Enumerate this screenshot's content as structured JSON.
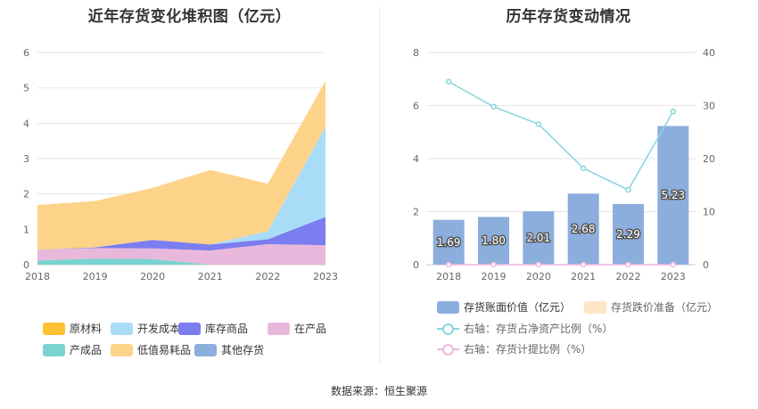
{
  "left_chart": {
    "title": "近年存货变化堆积图（亿元）",
    "legend": [
      {
        "name": "原材料",
        "color": "#fdc232"
      },
      {
        "name": "开发成本",
        "color": "#a9ddf7"
      },
      {
        "name": "库存商品",
        "color": "#7b7df0"
      },
      {
        "name": "在产品",
        "color": "#e8b8dc"
      },
      {
        "name": "产成品",
        "color": "#79d3cf"
      },
      {
        "name": "低值易耗品",
        "color": "#fdd38a"
      },
      {
        "name": "其他存货",
        "color": "#8caedd"
      }
    ]
  },
  "right_chart": {
    "title": "历年存货变动情况",
    "legend": {
      "bar1": "存货账面价值（亿元）",
      "bar2": "存货跌价准备（亿元）",
      "line1": "右轴：存货占净资产比例（%）",
      "line2": "右轴：存货计提比例（%）"
    },
    "colors": {
      "bar1": "#8caedd",
      "bar2": "#fde6c4",
      "line1": "#86d6dd",
      "line2": "#f1b6de"
    }
  },
  "source": "数据来源：恒生聚源",
  "chart_data": [
    {
      "type": "area",
      "stacked": true,
      "x": [
        "2018",
        "2019",
        "2020",
        "2021",
        "2022",
        "2023"
      ],
      "ylim": [
        0,
        6
      ],
      "yticks": [
        0,
        1,
        2,
        3,
        4,
        5,
        6
      ],
      "grid": true,
      "legend_position": "bottom",
      "series": [
        {
          "name": "产成品",
          "color": "#79d3cf",
          "values": [
            0.12,
            0.17,
            0.16,
            0.0,
            0.0,
            0.0
          ]
        },
        {
          "name": "在产品",
          "color": "#e8b8dc",
          "values": [
            0.3,
            0.3,
            0.3,
            0.4,
            0.58,
            0.55
          ]
        },
        {
          "name": "库存商品",
          "color": "#7b7df0",
          "values": [
            0.0,
            0.02,
            0.24,
            0.17,
            0.14,
            0.8
          ]
        },
        {
          "name": "开发成本",
          "color": "#a9ddf7",
          "values": [
            0.0,
            0.0,
            0.0,
            0.0,
            0.23,
            2.55
          ]
        },
        {
          "name": "原材料",
          "color": "#fdc232",
          "values": [
            0.0,
            0.0,
            0.0,
            0.0,
            0.0,
            0.0
          ]
        },
        {
          "name": "低值易耗品",
          "color": "#fdd38a",
          "values": [
            1.27,
            1.31,
            1.47,
            2.11,
            1.34,
            1.3
          ]
        },
        {
          "name": "其他存货",
          "color": "#8caedd",
          "values": [
            0.0,
            0.0,
            0.0,
            0.0,
            0.0,
            0.0
          ]
        }
      ]
    },
    {
      "type": "bar",
      "categories": [
        "2018",
        "2019",
        "2020",
        "2021",
        "2022",
        "2023"
      ],
      "ylim": [
        0,
        8
      ],
      "yticks": [
        0,
        2,
        4,
        6,
        8
      ],
      "y2lim": [
        0,
        40
      ],
      "y2ticks": [
        0,
        10,
        20,
        30,
        40
      ],
      "grid": true,
      "legend_position": "bottom",
      "series": [
        {
          "name": "存货账面价值（亿元）",
          "axis": "left",
          "type": "bar",
          "values": [
            1.69,
            1.8,
            2.01,
            2.68,
            2.29,
            5.23
          ]
        },
        {
          "name": "存货跌价准备（亿元）",
          "axis": "left",
          "type": "bar",
          "values": [
            0,
            0,
            0,
            0,
            0,
            0
          ]
        },
        {
          "name": "右轴：存货占净资产比例（%）",
          "axis": "right",
          "type": "line",
          "values": [
            34.5,
            29.8,
            26.5,
            18.2,
            14.1,
            28.9
          ]
        },
        {
          "name": "右轴：存货计提比例（%）",
          "axis": "right",
          "type": "line",
          "values": [
            0,
            0,
            0,
            0,
            0,
            0
          ]
        }
      ]
    }
  ]
}
